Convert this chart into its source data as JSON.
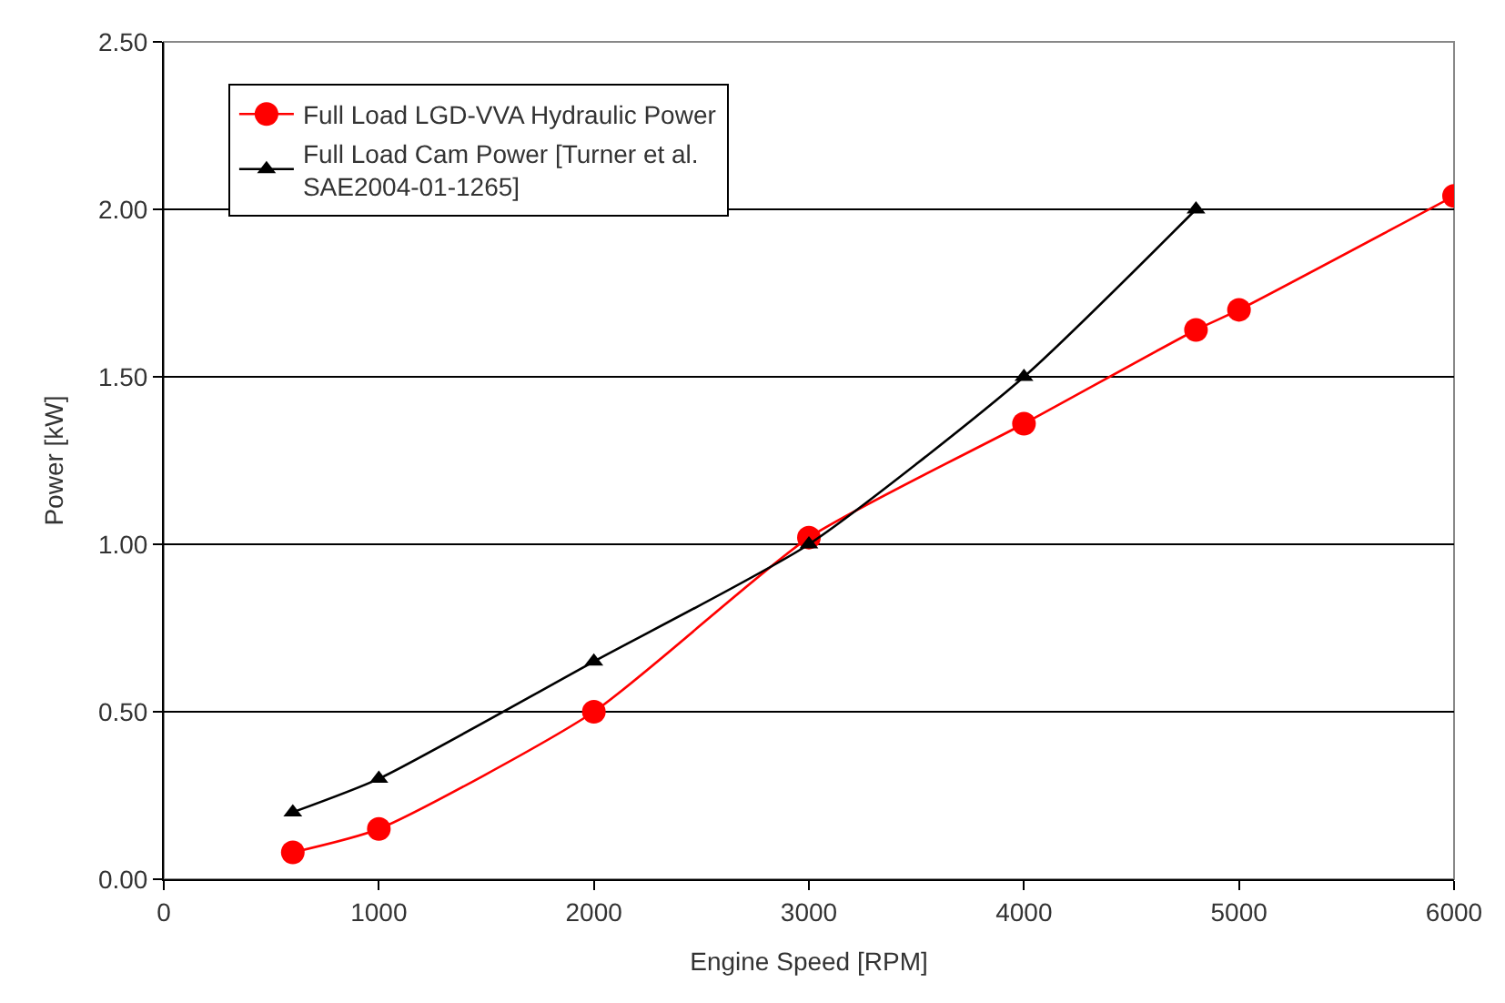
{
  "chart_data": {
    "type": "line",
    "xlabel": "Engine Speed [RPM]",
    "ylabel": "Power [kW]",
    "xlim": [
      0,
      6000
    ],
    "xticks": [
      0,
      1000,
      2000,
      3000,
      4000,
      5000,
      6000
    ],
    "ylim": [
      0,
      2.5
    ],
    "yticks": [
      {
        "value": 0,
        "label": "0.00"
      },
      {
        "value": 0.5,
        "label": "0.50"
      },
      {
        "value": 1,
        "label": "1.00"
      },
      {
        "value": 1.5,
        "label": "1.50"
      },
      {
        "value": 2,
        "label": "2.00"
      },
      {
        "value": 2.5,
        "label": "2.50"
      }
    ],
    "grid": "y",
    "legend": "top left",
    "series": [
      {
        "name": "Full Load LGD-VVA Hydraulic Power",
        "color": "#ff0000",
        "marker": "circle",
        "x": [
          600,
          1000,
          2000,
          3000,
          4000,
          4800,
          5000,
          6000
        ],
        "values": [
          0.08,
          0.15,
          0.5,
          1.02,
          1.36,
          1.64,
          1.7,
          2.04
        ]
      },
      {
        "name": "Full Load Cam Power [Turner et al.\nSAE2004-01-1265]",
        "color": "#000000",
        "marker": "triangle",
        "x": [
          600,
          1000,
          2000,
          3000,
          4000,
          4800
        ],
        "values": [
          0.2,
          0.3,
          0.65,
          1.0,
          1.5,
          2.0
        ]
      }
    ]
  }
}
